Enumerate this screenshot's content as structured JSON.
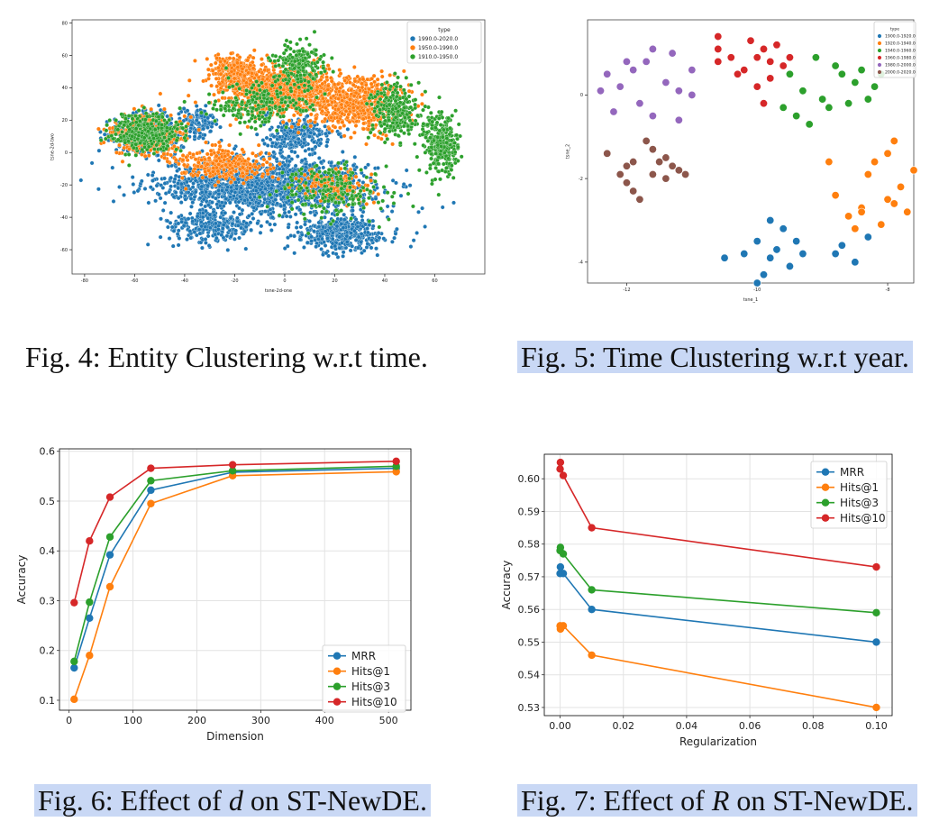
{
  "captions": {
    "fig4": "Fig. 4: Entity Clustering w.r.t time.",
    "fig5": "Fig. 5: Time Clustering w.r.t year.",
    "fig6_pre": "Fig. 6: Effect of ",
    "fig6_var": "d",
    "fig6_post": " on ST-NewDE.",
    "fig7_pre": "Fig. 7: Effect of ",
    "fig7_var": "R",
    "fig7_post": " on ST-NewDE."
  },
  "colors": {
    "blue": "#1f77b4",
    "orange": "#ff7f0e",
    "green": "#2ca02c",
    "red": "#d62728",
    "purple": "#9467bd",
    "brown": "#8c564b"
  },
  "chart_data": [
    {
      "id": "fig4",
      "type": "scatter",
      "xlabel": "tsne-2d-one",
      "ylabel": "tsne-2d-two",
      "xlim": [
        -85,
        80
      ],
      "ylim": [
        -75,
        82
      ],
      "xticks": [
        -80,
        -60,
        -40,
        -20,
        0,
        20,
        40,
        60
      ],
      "yticks": [
        -60,
        -40,
        -20,
        0,
        20,
        40,
        60,
        80
      ],
      "grid": false,
      "legend": {
        "title": "type",
        "placement": "top-right"
      },
      "series": [
        {
          "name": "1990.0-2020.0",
          "color": "#1f77b4",
          "clusters": [
            [
              -8,
              -20,
              42,
              16,
              1500
            ],
            [
              -28,
              -45,
              18,
              10,
              300
            ],
            [
              22,
              -50,
              18,
              12,
              400
            ],
            [
              -55,
              12,
              14,
              12,
              400
            ],
            [
              5,
              10,
              14,
              10,
              250
            ],
            [
              -35,
              20,
              8,
              8,
              120
            ]
          ]
        },
        {
          "name": "1950.0-1990.0",
          "color": "#ff7f0e",
          "clusters": [
            [
              -2,
              38,
              22,
              14,
              900
            ],
            [
              30,
              30,
              18,
              16,
              600
            ],
            [
              -55,
              12,
              14,
              12,
              400
            ],
            [
              -25,
              -8,
              18,
              10,
              300
            ],
            [
              20,
              -20,
              14,
              10,
              150
            ],
            [
              -20,
              50,
              10,
              10,
              250
            ]
          ]
        },
        {
          "name": "1910.0-1950.0",
          "color": "#2ca02c",
          "clusters": [
            [
              -55,
              12,
              14,
              12,
              350
            ],
            [
              62,
              5,
              7,
              18,
              300
            ],
            [
              45,
              25,
              10,
              18,
              250
            ],
            [
              5,
              55,
              10,
              12,
              200
            ],
            [
              -10,
              30,
              20,
              14,
              200
            ],
            [
              20,
              -25,
              22,
              18,
              200
            ]
          ]
        }
      ]
    },
    {
      "id": "fig5",
      "type": "scatter",
      "xlabel": "tsne_1",
      "ylabel": "tsne_2",
      "xlim": [
        -12.6,
        -7.6
      ],
      "ylim": [
        -4.5,
        1.8
      ],
      "xticks": [
        -12,
        -10,
        -8
      ],
      "yticks": [
        -4,
        -2,
        0
      ],
      "grid": false,
      "legend": {
        "title": "type",
        "placement": "top-right"
      },
      "series": [
        {
          "name": "1900.0-1920.0",
          "color": "#1f77b4",
          "points": [
            [
              -9.6,
              -3.2
            ],
            [
              -10.0,
              -3.5
            ],
            [
              -10.5,
              -3.9
            ],
            [
              -9.9,
              -4.3
            ],
            [
              -10.0,
              -4.5
            ],
            [
              -9.5,
              -4.1
            ],
            [
              -9.3,
              -3.8
            ],
            [
              -9.8,
              -3.0
            ],
            [
              -8.8,
              -3.8
            ],
            [
              -8.5,
              -4.0
            ],
            [
              -8.3,
              -3.4
            ],
            [
              -8.7,
              -3.6
            ],
            [
              -9.7,
              -3.7
            ],
            [
              -10.2,
              -3.8
            ],
            [
              -9.4,
              -3.5
            ],
            [
              -9.8,
              -3.9
            ]
          ]
        },
        {
          "name": "1920.0-1940.0",
          "color": "#ff7f0e",
          "points": [
            [
              -8.4,
              -2.7
            ],
            [
              -8.2,
              -1.6
            ],
            [
              -7.8,
              -2.2
            ],
            [
              -7.6,
              -1.8
            ],
            [
              -8.0,
              -1.4
            ],
            [
              -7.9,
              -1.1
            ],
            [
              -8.3,
              -1.9
            ],
            [
              -8.6,
              -2.9
            ],
            [
              -8.0,
              -2.5
            ],
            [
              -8.8,
              -2.4
            ],
            [
              -7.7,
              -2.8
            ],
            [
              -8.1,
              -3.1
            ],
            [
              -8.5,
              -3.2
            ],
            [
              -8.9,
              -1.6
            ],
            [
              -7.9,
              -2.6
            ],
            [
              -8.4,
              -2.8
            ]
          ]
        },
        {
          "name": "1940.0-1960.0",
          "color": "#2ca02c",
          "points": [
            [
              -9.5,
              0.5
            ],
            [
              -9.1,
              0.9
            ],
            [
              -8.8,
              0.7
            ],
            [
              -8.5,
              0.3
            ],
            [
              -9.0,
              -0.1
            ],
            [
              -9.4,
              -0.5
            ],
            [
              -8.9,
              -0.3
            ],
            [
              -8.6,
              -0.2
            ],
            [
              -8.2,
              0.2
            ],
            [
              -8.7,
              0.5
            ],
            [
              -9.2,
              -0.7
            ],
            [
              -8.4,
              0.6
            ],
            [
              -8.3,
              -0.1
            ],
            [
              -9.6,
              -0.3
            ],
            [
              -8.1,
              0.5
            ],
            [
              -9.3,
              0.1
            ]
          ]
        },
        {
          "name": "1960.0-1980.0",
          "color": "#d62728",
          "points": [
            [
              -10.6,
              1.4
            ],
            [
              -10.6,
              1.1
            ],
            [
              -10.4,
              0.9
            ],
            [
              -10.1,
              1.3
            ],
            [
              -9.9,
              1.1
            ],
            [
              -9.7,
              1.2
            ],
            [
              -9.6,
              0.7
            ],
            [
              -9.8,
              0.4
            ],
            [
              -10.0,
              0.2
            ],
            [
              -10.2,
              0.6
            ],
            [
              -9.9,
              -0.2
            ],
            [
              -10.3,
              0.5
            ],
            [
              -9.5,
              0.9
            ],
            [
              -10.6,
              0.8
            ],
            [
              -10.0,
              0.9
            ],
            [
              -9.8,
              0.8
            ]
          ]
        },
        {
          "name": "1980.0-2000.0",
          "color": "#9467bd",
          "points": [
            [
              -12.0,
              0.8
            ],
            [
              -11.6,
              1.1
            ],
            [
              -11.3,
              1.0
            ],
            [
              -11.0,
              0.6
            ],
            [
              -12.3,
              0.5
            ],
            [
              -12.4,
              0.1
            ],
            [
              -11.8,
              -0.2
            ],
            [
              -11.2,
              0.1
            ],
            [
              -11.6,
              -0.5
            ],
            [
              -12.2,
              -0.4
            ],
            [
              -11.9,
              0.6
            ],
            [
              -11.4,
              0.3
            ],
            [
              -11.0,
              0.0
            ],
            [
              -12.1,
              0.2
            ],
            [
              -11.7,
              0.8
            ],
            [
              -11.2,
              -0.6
            ]
          ]
        },
        {
          "name": "2000.0-2020.0",
          "color": "#8c564b",
          "points": [
            [
              -12.3,
              -1.4
            ],
            [
              -11.9,
              -1.6
            ],
            [
              -11.6,
              -1.3
            ],
            [
              -11.4,
              -1.5
            ],
            [
              -11.2,
              -1.8
            ],
            [
              -11.6,
              -1.9
            ],
            [
              -12.0,
              -2.1
            ],
            [
              -11.8,
              -2.5
            ],
            [
              -11.4,
              -2.0
            ],
            [
              -12.1,
              -1.9
            ],
            [
              -11.7,
              -1.1
            ],
            [
              -11.3,
              -1.7
            ],
            [
              -11.9,
              -2.3
            ],
            [
              -11.5,
              -1.6
            ],
            [
              -12.0,
              -1.7
            ],
            [
              -11.1,
              -1.9
            ]
          ]
        }
      ]
    },
    {
      "id": "fig6",
      "type": "line",
      "xlabel": "Dimension",
      "ylabel": "Accuracy",
      "xlim": [
        -15,
        535
      ],
      "ylim": [
        0.08,
        0.605
      ],
      "xticks": [
        0,
        100,
        200,
        300,
        400,
        500
      ],
      "yticks": [
        0.1,
        0.2,
        0.3,
        0.4,
        0.5,
        0.6
      ],
      "ytick_labels": [
        "0.1",
        "0.2",
        "0.3",
        "0.4",
        "0.5",
        "0.6"
      ],
      "grid": true,
      "legend": {
        "placement": "bottom-right"
      },
      "x": [
        8,
        32,
        64,
        128,
        256,
        512
      ],
      "series": [
        {
          "name": "MRR",
          "color": "#1f77b4",
          "values": [
            0.165,
            0.265,
            0.392,
            0.522,
            0.558,
            0.566
          ]
        },
        {
          "name": "Hits@1",
          "color": "#ff7f0e",
          "values": [
            0.102,
            0.19,
            0.328,
            0.495,
            0.551,
            0.559
          ]
        },
        {
          "name": "Hits@3",
          "color": "#2ca02c",
          "values": [
            0.178,
            0.297,
            0.428,
            0.541,
            0.561,
            0.57
          ]
        },
        {
          "name": "Hits@10",
          "color": "#d62728",
          "values": [
            0.296,
            0.42,
            0.508,
            0.566,
            0.573,
            0.58
          ]
        }
      ]
    },
    {
      "id": "fig7",
      "type": "line",
      "xlabel": "Regularization",
      "ylabel": "Accuracy",
      "xlim": [
        -0.005,
        0.105
      ],
      "ylim": [
        0.5275,
        0.6075
      ],
      "xticks": [
        0.0,
        0.02,
        0.04,
        0.06,
        0.08,
        0.1
      ],
      "xtick_labels": [
        "0.00",
        "0.02",
        "0.04",
        "0.06",
        "0.08",
        "0.10"
      ],
      "yticks": [
        0.53,
        0.54,
        0.55,
        0.56,
        0.57,
        0.58,
        0.59,
        0.6
      ],
      "ytick_labels": [
        "0.53",
        "0.54",
        "0.55",
        "0.56",
        "0.57",
        "0.58",
        "0.59",
        "0.60"
      ],
      "grid": true,
      "legend": {
        "placement": "top-right"
      },
      "x": [
        0.0,
        0.0001,
        0.001,
        0.01,
        0.1
      ],
      "series": [
        {
          "name": "MRR",
          "color": "#1f77b4",
          "values": [
            0.571,
            0.573,
            0.571,
            0.56,
            0.55
          ]
        },
        {
          "name": "Hits@1",
          "color": "#ff7f0e",
          "values": [
            0.555,
            0.554,
            0.555,
            0.546,
            0.53
          ]
        },
        {
          "name": "Hits@3",
          "color": "#2ca02c",
          "values": [
            0.578,
            0.579,
            0.577,
            0.566,
            0.559
          ]
        },
        {
          "name": "Hits@10",
          "color": "#d62728",
          "values": [
            0.603,
            0.605,
            0.601,
            0.585,
            0.573
          ]
        }
      ]
    }
  ]
}
